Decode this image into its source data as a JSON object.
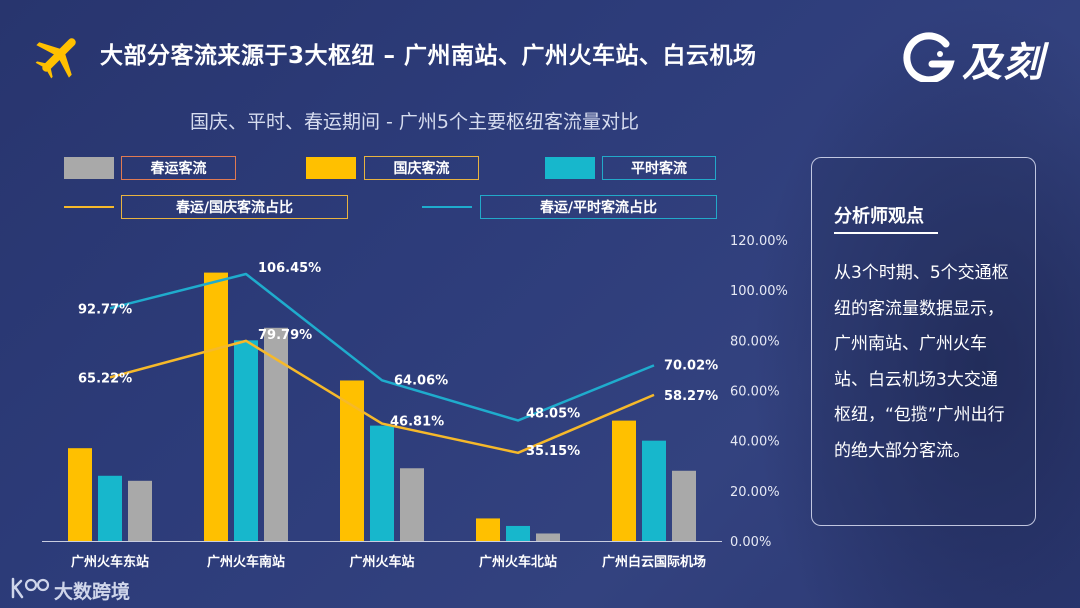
{
  "header": {
    "title": "大部分客流来源于3大枢纽 – 广州南站、广州火车站、白云机场",
    "logo_text": "及刻"
  },
  "colors": {
    "spring": "#a9a9a9",
    "national": "#ffc000",
    "normal": "#17b7cc",
    "line_national": "#f6b92a",
    "line_normal": "#1faccd"
  },
  "chart_data": {
    "type": "bar",
    "title": "国庆、平时、春运期间 - 广州5个主要枢纽客流量对比",
    "categories": [
      "广州火车东站",
      "广州火车南站",
      "广州火车站",
      "广州火车北站",
      "广州白云国际机场"
    ],
    "series": [
      {
        "name": "国庆客流",
        "values": [
          37,
          107,
          64,
          9,
          48
        ]
      },
      {
        "name": "平时客流",
        "values": [
          26,
          80,
          46,
          6,
          40
        ]
      },
      {
        "name": "春运客流",
        "values": [
          24,
          85,
          29,
          3,
          28
        ]
      }
    ],
    "bar_axis": {
      "ylim": [
        0,
        120
      ],
      "note": "no tick labels shown (relative volume)"
    },
    "lines": [
      {
        "name": "春运/国庆客流占比",
        "values": [
          65.22,
          79.79,
          46.81,
          35.15,
          58.27
        ],
        "labels": [
          "65.22%",
          "79.79%",
          "46.81%",
          "35.15%",
          "58.27%"
        ]
      },
      {
        "name": "春运/平时客流占比",
        "values": [
          92.77,
          106.45,
          64.06,
          48.05,
          70.02
        ],
        "labels": [
          "92.77%",
          "106.45%",
          "64.06%",
          "48.05%",
          "70.02%"
        ]
      }
    ],
    "y2_axis": {
      "ylim": [
        0,
        120
      ],
      "ticks": [
        "0.00%",
        "20.00%",
        "40.00%",
        "60.00%",
        "80.00%",
        "100.00%",
        "120.00%"
      ]
    },
    "legend": [
      {
        "label": "春运客流",
        "kind": "bar",
        "color": "#a9a9a9"
      },
      {
        "label": "国庆客流",
        "kind": "bar",
        "color": "#ffc000"
      },
      {
        "label": "平时客流",
        "kind": "bar",
        "color": "#17b7cc"
      },
      {
        "label": "春运/国庆客流占比",
        "kind": "line",
        "color": "#f6b92a"
      },
      {
        "label": "春运/平时客流占比",
        "kind": "line",
        "color": "#1faccd"
      }
    ]
  },
  "panel": {
    "title": "分析师观点",
    "body": "从3个时期、5个交通枢纽的客流量数据显示，广州南站、广州火车站、白云机场3大交通枢纽，“包揽”广州出行的绝大部分客流。"
  },
  "footer": {
    "brand": "大数跨境"
  }
}
